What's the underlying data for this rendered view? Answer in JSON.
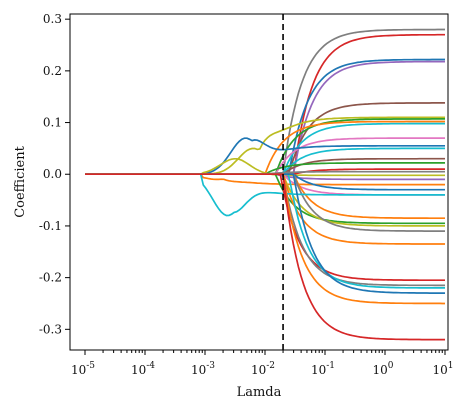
{
  "chart_data": {
    "type": "line",
    "x_scale": "log",
    "xlabel": "Lamda",
    "ylabel": "Coefficient",
    "xlim": [
      1e-05,
      10
    ],
    "ylim": [
      -0.34,
      0.31
    ],
    "x_ticks": [
      {
        "value": 1e-05,
        "base": "10",
        "exp": "-5"
      },
      {
        "value": 0.0001,
        "base": "10",
        "exp": "-4"
      },
      {
        "value": 0.001,
        "base": "10",
        "exp": "-3"
      },
      {
        "value": 0.01,
        "base": "10",
        "exp": "-2"
      },
      {
        "value": 0.1,
        "base": "10",
        "exp": "-1"
      },
      {
        "value": 1,
        "base": "10",
        "exp": "0"
      },
      {
        "value": 10,
        "base": "10",
        "exp": "1"
      }
    ],
    "y_ticks": [
      {
        "value": 0.3,
        "label": "0.3"
      },
      {
        "value": 0.2,
        "label": "0.2"
      },
      {
        "value": 0.1,
        "label": "0.1"
      },
      {
        "value": 0.0,
        "label": "0.0"
      },
      {
        "value": -0.1,
        "label": "-0.1"
      },
      {
        "value": -0.2,
        "label": "-0.2"
      },
      {
        "value": -0.3,
        "label": "-0.3"
      }
    ],
    "reference_line": {
      "x": 0.02,
      "style": "dashed",
      "color": "#000000"
    },
    "grid": false,
    "legend": "none",
    "series": [
      {
        "color": "#7f7f7f",
        "final": 0.28,
        "onset": 0.02
      },
      {
        "color": "#d62728",
        "final": 0.27,
        "onset": 0.03
      },
      {
        "color": "#1f77b4",
        "final": 0.222,
        "onset": 0.025
      },
      {
        "color": "#9467bd",
        "final": 0.218,
        "onset": 0.03
      },
      {
        "color": "#8c564b",
        "final": 0.138,
        "onset": 0.025
      },
      {
        "color": "#bcbd22",
        "final": 0.11,
        "onset": 0.008,
        "bump": 0.05
      },
      {
        "color": "#2ca02c",
        "final": 0.107,
        "onset": 0.015
      },
      {
        "color": "#ff7f0e",
        "final": 0.102,
        "onset": 0.01
      },
      {
        "color": "#17becf",
        "final": 0.098,
        "onset": 0.02
      },
      {
        "color": "#e377c2",
        "final": 0.07,
        "onset": 0.015
      },
      {
        "color": "#1f77b4",
        "final": 0.055,
        "onset": 0.006,
        "bump": 0.07
      },
      {
        "color": "#17becf",
        "final": 0.05,
        "onset": 0.02
      },
      {
        "color": "#8c564b",
        "final": 0.03,
        "onset": 0.02
      },
      {
        "color": "#2ca02c",
        "final": 0.022,
        "onset": 0.01
      },
      {
        "color": "#d62728",
        "final": 0.01,
        "onset": 0.03
      },
      {
        "color": "#7f7f7f",
        "final": 0.005,
        "onset": 0.01
      },
      {
        "color": "#bcbd22",
        "final": -0.002,
        "onset": 0.004,
        "bump": 0.03
      },
      {
        "color": "#9467bd",
        "final": -0.01,
        "onset": 0.015
      },
      {
        "color": "#ff7f0e",
        "final": -0.02,
        "onset": 0.002,
        "bump": -0.01
      },
      {
        "color": "#1f77b4",
        "final": -0.03,
        "onset": 0.03
      },
      {
        "color": "#e377c2",
        "final": -0.04,
        "onset": 0.02
      },
      {
        "color": "#ff7f0e",
        "final": -0.085,
        "onset": 0.03
      },
      {
        "color": "#2ca02c",
        "final": -0.095,
        "onset": 0.015
      },
      {
        "color": "#bcbd22",
        "final": -0.1,
        "onset": 0.02
      },
      {
        "color": "#7f7f7f",
        "final": -0.11,
        "onset": 0.03
      },
      {
        "color": "#ff7f0e",
        "final": -0.135,
        "onset": 0.02
      },
      {
        "color": "#17becf",
        "final": -0.04,
        "onset": 0.003,
        "bump": -0.08
      },
      {
        "color": "#d62728",
        "final": -0.205,
        "onset": 0.018
      },
      {
        "color": "#7f7f7f",
        "final": -0.215,
        "onset": 0.02
      },
      {
        "color": "#17becf",
        "final": -0.22,
        "onset": 0.025
      },
      {
        "color": "#1f77b4",
        "final": -0.23,
        "onset": 0.03
      },
      {
        "color": "#ff7f0e",
        "final": -0.25,
        "onset": 0.02
      },
      {
        "color": "#d62728",
        "final": -0.32,
        "onset": 0.02
      }
    ]
  }
}
